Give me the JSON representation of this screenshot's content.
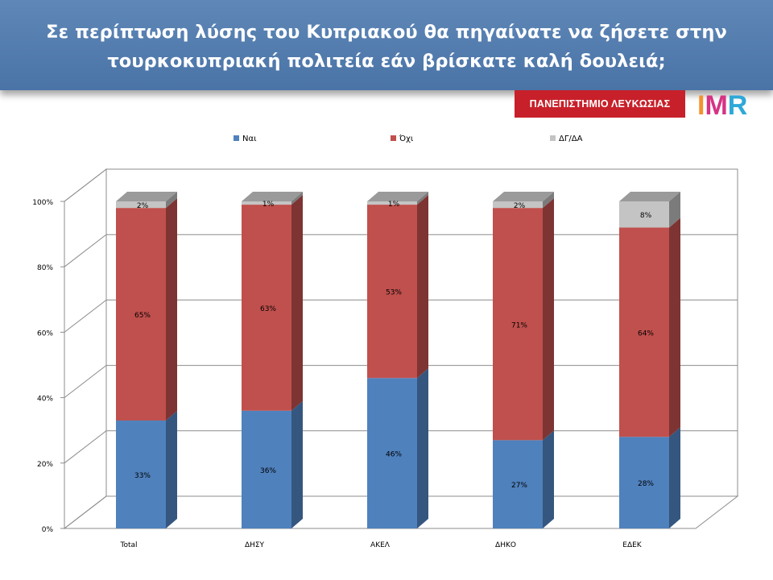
{
  "header": {
    "title_line1": "Σε περίπτωση λύσης του Κυπριακού θα πηγαίνατε να ζήσετε στην",
    "title_line2": "τουρκοκυπριακή πολιτεία εάν βρίσκατε καλή δουλειά;"
  },
  "logos": {
    "university": "ΠΑΝΕΠΙΣΤΗΜΙΟ ΛΕΥΚΩΣΙΑΣ",
    "imr": "IMR"
  },
  "colors": {
    "header": "#4f78a9",
    "yes_front": "#4f81bd",
    "yes_side": "#35567f",
    "yes_top": "#6d97cc",
    "no_front": "#c0504d",
    "no_side": "#7e3432",
    "no_top": "#d07572",
    "dk_front": "#c4c4c4",
    "dk_side": "#7b7b7b",
    "dk_top": "#9a9a9a"
  },
  "chart_data": {
    "type": "bar",
    "stacked": true,
    "style": "3d-100%-stacked-column",
    "title": "",
    "categories": [
      "Total",
      "ΔΗΣΥ",
      "ΑΚΕΛ",
      "ΔΗΚΟ",
      "ΕΔΕΚ"
    ],
    "series": [
      {
        "name": "Ναι",
        "values": [
          33,
          36,
          46,
          27,
          28
        ],
        "labels": [
          "33%",
          "36%",
          "46%",
          "27%",
          "28%"
        ]
      },
      {
        "name": "Όχι",
        "values": [
          65,
          63,
          53,
          71,
          64
        ],
        "labels": [
          "65%",
          "63%",
          "53%",
          "71%",
          "64%"
        ]
      },
      {
        "name": "ΔΓ/ΔΑ",
        "values": [
          2,
          1,
          1,
          2,
          8
        ],
        "labels": [
          "2%",
          "1%",
          "1%",
          "2%",
          "8%"
        ]
      }
    ],
    "yticks": [
      "0%",
      "20%",
      "40%",
      "60%",
      "80%",
      "100%"
    ],
    "ylim": [
      0,
      100
    ],
    "grid": true,
    "legend": "top"
  }
}
